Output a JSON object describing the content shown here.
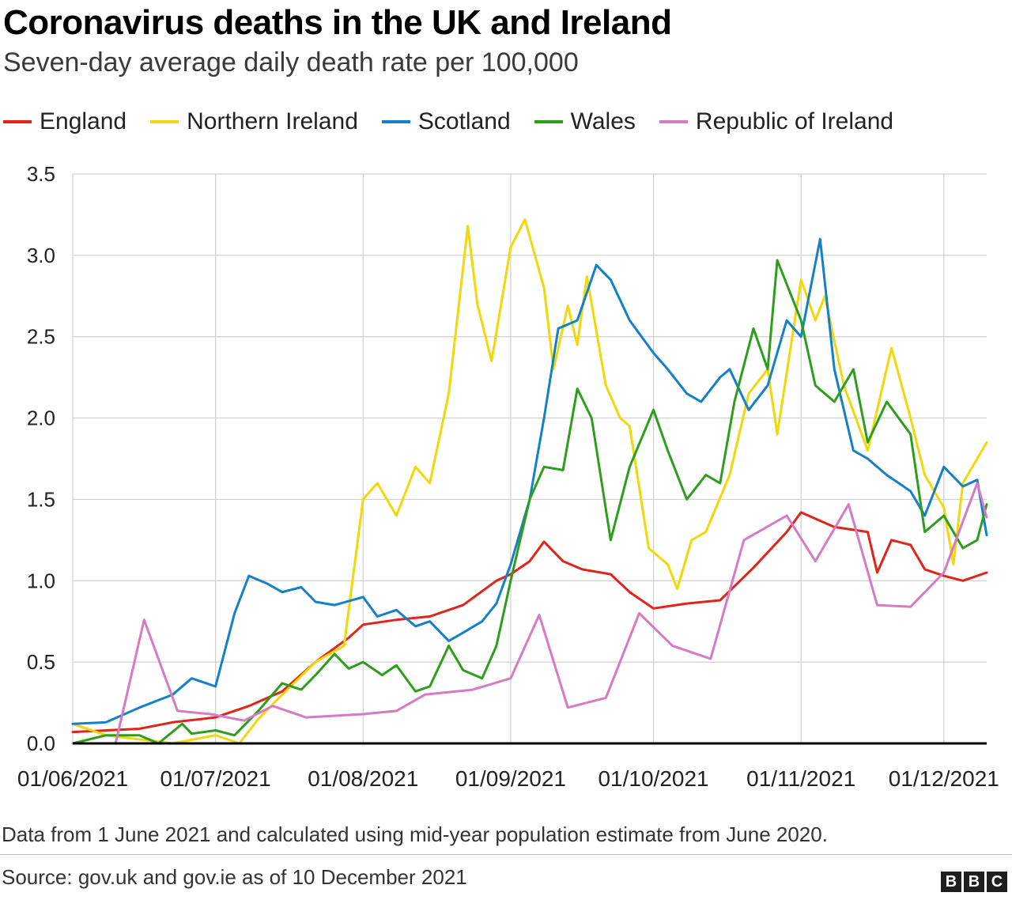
{
  "header": {
    "title": "Coronavirus deaths in the UK and Ireland",
    "subtitle": "Seven-day average daily death rate per 100,000"
  },
  "footer": {
    "note": "Data from 1 June 2021 and calculated using mid-year population estimate from June 2020.",
    "source": "Source: gov.uk and gov.ie as of 10 December 2021",
    "logo_letters": [
      "B",
      "B",
      "C"
    ]
  },
  "chart_data": {
    "type": "line",
    "title": "Coronavirus deaths in the UK and Ireland",
    "subtitle": "Seven-day average daily death rate per 100,000",
    "xlabel": "",
    "ylabel": "",
    "x_start": "01/06/2021",
    "x_end": "10/12/2021",
    "xlim": [
      "01/06/2021",
      "10/12/2021"
    ],
    "ylim": [
      0,
      3.5
    ],
    "y_ticks": [
      "0.0",
      "0.5",
      "1.0",
      "1.5",
      "2.0",
      "2.5",
      "3.0",
      "3.5"
    ],
    "x_ticks": [
      "01/06/2021",
      "01/07/2021",
      "01/08/2021",
      "01/09/2021",
      "01/10/2021",
      "01/11/2021",
      "01/12/2021"
    ],
    "grid": true,
    "legend_position": "top",
    "series": [
      {
        "name": "England",
        "color": "#e2231a",
        "points": [
          [
            "01/06/2021",
            0.07
          ],
          [
            "15/06/2021",
            0.09
          ],
          [
            "22/06/2021",
            0.13
          ],
          [
            "01/07/2021",
            0.16
          ],
          [
            "08/07/2021",
            0.23
          ],
          [
            "15/07/2021",
            0.32
          ],
          [
            "22/07/2021",
            0.5
          ],
          [
            "29/07/2021",
            0.65
          ],
          [
            "01/08/2021",
            0.73
          ],
          [
            "08/08/2021",
            0.76
          ],
          [
            "15/08/2021",
            0.78
          ],
          [
            "22/08/2021",
            0.85
          ],
          [
            "29/08/2021",
            1.0
          ],
          [
            "01/09/2021",
            1.04
          ],
          [
            "05/09/2021",
            1.12
          ],
          [
            "08/09/2021",
            1.24
          ],
          [
            "12/09/2021",
            1.12
          ],
          [
            "16/09/2021",
            1.07
          ],
          [
            "22/09/2021",
            1.04
          ],
          [
            "26/09/2021",
            0.93
          ],
          [
            "01/10/2021",
            0.83
          ],
          [
            "08/10/2021",
            0.86
          ],
          [
            "15/10/2021",
            0.88
          ],
          [
            "22/10/2021",
            1.08
          ],
          [
            "29/10/2021",
            1.3
          ],
          [
            "01/11/2021",
            1.42
          ],
          [
            "08/11/2021",
            1.33
          ],
          [
            "15/11/2021",
            1.3
          ],
          [
            "17/11/2021",
            1.05
          ],
          [
            "20/11/2021",
            1.25
          ],
          [
            "24/11/2021",
            1.22
          ],
          [
            "27/11/2021",
            1.07
          ],
          [
            "01/12/2021",
            1.03
          ],
          [
            "05/12/2021",
            1.0
          ],
          [
            "10/12/2021",
            1.05
          ]
        ]
      },
      {
        "name": "Northern Ireland",
        "color": "#f2d70a",
        "points": [
          [
            "01/06/2021",
            0.12
          ],
          [
            "08/06/2021",
            0.05
          ],
          [
            "22/06/2021",
            0.0
          ],
          [
            "01/07/2021",
            0.05
          ],
          [
            "06/07/2021",
            0.0
          ],
          [
            "10/07/2021",
            0.15
          ],
          [
            "15/07/2021",
            0.3
          ],
          [
            "22/07/2021",
            0.5
          ],
          [
            "28/07/2021",
            0.6
          ],
          [
            "01/08/2021",
            1.5
          ],
          [
            "04/08/2021",
            1.6
          ],
          [
            "08/08/2021",
            1.4
          ],
          [
            "12/08/2021",
            1.7
          ],
          [
            "15/08/2021",
            1.6
          ],
          [
            "19/08/2021",
            2.15
          ],
          [
            "23/08/2021",
            3.18
          ],
          [
            "25/08/2021",
            2.7
          ],
          [
            "28/08/2021",
            2.35
          ],
          [
            "01/09/2021",
            3.05
          ],
          [
            "04/09/2021",
            3.22
          ],
          [
            "08/09/2021",
            2.8
          ],
          [
            "10/09/2021",
            2.3
          ],
          [
            "13/09/2021",
            2.69
          ],
          [
            "15/09/2021",
            2.45
          ],
          [
            "17/09/2021",
            2.87
          ],
          [
            "21/09/2021",
            2.2
          ],
          [
            "24/09/2021",
            2.0
          ],
          [
            "26/09/2021",
            1.95
          ],
          [
            "30/09/2021",
            1.2
          ],
          [
            "04/10/2021",
            1.1
          ],
          [
            "06/10/2021",
            0.95
          ],
          [
            "09/10/2021",
            1.25
          ],
          [
            "12/10/2021",
            1.3
          ],
          [
            "17/10/2021",
            1.65
          ],
          [
            "21/10/2021",
            2.15
          ],
          [
            "25/10/2021",
            2.3
          ],
          [
            "27/10/2021",
            1.9
          ],
          [
            "01/11/2021",
            2.85
          ],
          [
            "04/11/2021",
            2.6
          ],
          [
            "06/11/2021",
            2.75
          ],
          [
            "10/11/2021",
            2.2
          ],
          [
            "15/11/2021",
            1.8
          ],
          [
            "20/11/2021",
            2.43
          ],
          [
            "24/11/2021",
            2.0
          ],
          [
            "27/11/2021",
            1.65
          ],
          [
            "01/12/2021",
            1.45
          ],
          [
            "03/12/2021",
            1.1
          ],
          [
            "05/12/2021",
            1.6
          ],
          [
            "10/12/2021",
            1.85
          ]
        ]
      },
      {
        "name": "Scotland",
        "color": "#1380c8",
        "points": [
          [
            "01/06/2021",
            0.12
          ],
          [
            "08/06/2021",
            0.13
          ],
          [
            "15/06/2021",
            0.22
          ],
          [
            "22/06/2021",
            0.3
          ],
          [
            "26/06/2021",
            0.4
          ],
          [
            "01/07/2021",
            0.35
          ],
          [
            "05/07/2021",
            0.8
          ],
          [
            "08/07/2021",
            1.03
          ],
          [
            "12/07/2021",
            0.98
          ],
          [
            "15/07/2021",
            0.93
          ],
          [
            "19/07/2021",
            0.96
          ],
          [
            "22/07/2021",
            0.87
          ],
          [
            "26/07/2021",
            0.85
          ],
          [
            "01/08/2021",
            0.9
          ],
          [
            "04/08/2021",
            0.78
          ],
          [
            "08/08/2021",
            0.82
          ],
          [
            "12/08/2021",
            0.72
          ],
          [
            "15/08/2021",
            0.75
          ],
          [
            "19/08/2021",
            0.63
          ],
          [
            "22/08/2021",
            0.68
          ],
          [
            "26/08/2021",
            0.75
          ],
          [
            "29/08/2021",
            0.86
          ],
          [
            "01/09/2021",
            1.1
          ],
          [
            "05/09/2021",
            1.5
          ],
          [
            "08/09/2021",
            2.0
          ],
          [
            "11/09/2021",
            2.55
          ],
          [
            "15/09/2021",
            2.6
          ],
          [
            "19/09/2021",
            2.94
          ],
          [
            "22/09/2021",
            2.85
          ],
          [
            "26/09/2021",
            2.6
          ],
          [
            "01/10/2021",
            2.4
          ],
          [
            "04/10/2021",
            2.3
          ],
          [
            "08/10/2021",
            2.15
          ],
          [
            "11/10/2021",
            2.1
          ],
          [
            "15/10/2021",
            2.25
          ],
          [
            "17/10/2021",
            2.3
          ],
          [
            "21/10/2021",
            2.05
          ],
          [
            "25/10/2021",
            2.2
          ],
          [
            "29/10/2021",
            2.6
          ],
          [
            "01/11/2021",
            2.5
          ],
          [
            "05/11/2021",
            3.1
          ],
          [
            "08/11/2021",
            2.3
          ],
          [
            "12/11/2021",
            1.8
          ],
          [
            "15/11/2021",
            1.75
          ],
          [
            "19/11/2021",
            1.65
          ],
          [
            "24/11/2021",
            1.55
          ],
          [
            "27/11/2021",
            1.4
          ],
          [
            "01/12/2021",
            1.7
          ],
          [
            "05/12/2021",
            1.58
          ],
          [
            "08/12/2021",
            1.62
          ],
          [
            "10/12/2021",
            1.28
          ]
        ]
      },
      {
        "name": "Wales",
        "color": "#2d9e1c",
        "points": [
          [
            "01/06/2021",
            0.0
          ],
          [
            "08/06/2021",
            0.05
          ],
          [
            "15/06/2021",
            0.05
          ],
          [
            "19/06/2021",
            0.0
          ],
          [
            "24/06/2021",
            0.12
          ],
          [
            "26/06/2021",
            0.06
          ],
          [
            "01/07/2021",
            0.08
          ],
          [
            "05/07/2021",
            0.05
          ],
          [
            "10/07/2021",
            0.2
          ],
          [
            "15/07/2021",
            0.37
          ],
          [
            "19/07/2021",
            0.33
          ],
          [
            "22/07/2021",
            0.42
          ],
          [
            "26/07/2021",
            0.55
          ],
          [
            "29/07/2021",
            0.46
          ],
          [
            "01/08/2021",
            0.5
          ],
          [
            "05/08/2021",
            0.42
          ],
          [
            "08/08/2021",
            0.48
          ],
          [
            "12/08/2021",
            0.32
          ],
          [
            "15/08/2021",
            0.35
          ],
          [
            "19/08/2021",
            0.6
          ],
          [
            "22/08/2021",
            0.45
          ],
          [
            "26/08/2021",
            0.4
          ],
          [
            "29/08/2021",
            0.6
          ],
          [
            "01/09/2021",
            1.0
          ],
          [
            "05/09/2021",
            1.5
          ],
          [
            "08/09/2021",
            1.7
          ],
          [
            "12/09/2021",
            1.68
          ],
          [
            "15/09/2021",
            2.18
          ],
          [
            "18/09/2021",
            2.0
          ],
          [
            "22/09/2021",
            1.25
          ],
          [
            "26/09/2021",
            1.7
          ],
          [
            "01/10/2021",
            2.05
          ],
          [
            "04/10/2021",
            1.8
          ],
          [
            "08/10/2021",
            1.5
          ],
          [
            "12/10/2021",
            1.65
          ],
          [
            "15/10/2021",
            1.6
          ],
          [
            "18/10/2021",
            2.1
          ],
          [
            "22/10/2021",
            2.55
          ],
          [
            "25/10/2021",
            2.3
          ],
          [
            "27/10/2021",
            2.97
          ],
          [
            "01/11/2021",
            2.6
          ],
          [
            "04/11/2021",
            2.2
          ],
          [
            "08/11/2021",
            2.1
          ],
          [
            "12/11/2021",
            2.3
          ],
          [
            "15/11/2021",
            1.85
          ],
          [
            "19/11/2021",
            2.1
          ],
          [
            "24/11/2021",
            1.9
          ],
          [
            "27/11/2021",
            1.3
          ],
          [
            "01/12/2021",
            1.4
          ],
          [
            "05/12/2021",
            1.2
          ],
          [
            "08/12/2021",
            1.25
          ],
          [
            "10/12/2021",
            1.47
          ]
        ]
      },
      {
        "name": "Republic of Ireland",
        "color": "#d67ac4",
        "points": [
          [
            "01/06/2021",
            0.0
          ],
          [
            "10/06/2021",
            0.0
          ],
          [
            "16/06/2021",
            0.76
          ],
          [
            "23/06/2021",
            0.2
          ],
          [
            "30/06/2021",
            0.18
          ],
          [
            "07/07/2021",
            0.14
          ],
          [
            "13/07/2021",
            0.23
          ],
          [
            "20/07/2021",
            0.16
          ],
          [
            "01/08/2021",
            0.18
          ],
          [
            "08/08/2021",
            0.2
          ],
          [
            "14/08/2021",
            0.3
          ],
          [
            "24/08/2021",
            0.33
          ],
          [
            "01/09/2021",
            0.4
          ],
          [
            "07/09/2021",
            0.79
          ],
          [
            "13/09/2021",
            0.22
          ],
          [
            "21/09/2021",
            0.28
          ],
          [
            "28/09/2021",
            0.8
          ],
          [
            "05/10/2021",
            0.6
          ],
          [
            "13/10/2021",
            0.52
          ],
          [
            "20/10/2021",
            1.25
          ],
          [
            "29/10/2021",
            1.4
          ],
          [
            "04/11/2021",
            1.12
          ],
          [
            "11/11/2021",
            1.47
          ],
          [
            "17/11/2021",
            0.85
          ],
          [
            "24/11/2021",
            0.84
          ],
          [
            "01/12/2021",
            1.05
          ],
          [
            "08/12/2021",
            1.6
          ],
          [
            "10/12/2021",
            1.39
          ]
        ]
      }
    ]
  }
}
